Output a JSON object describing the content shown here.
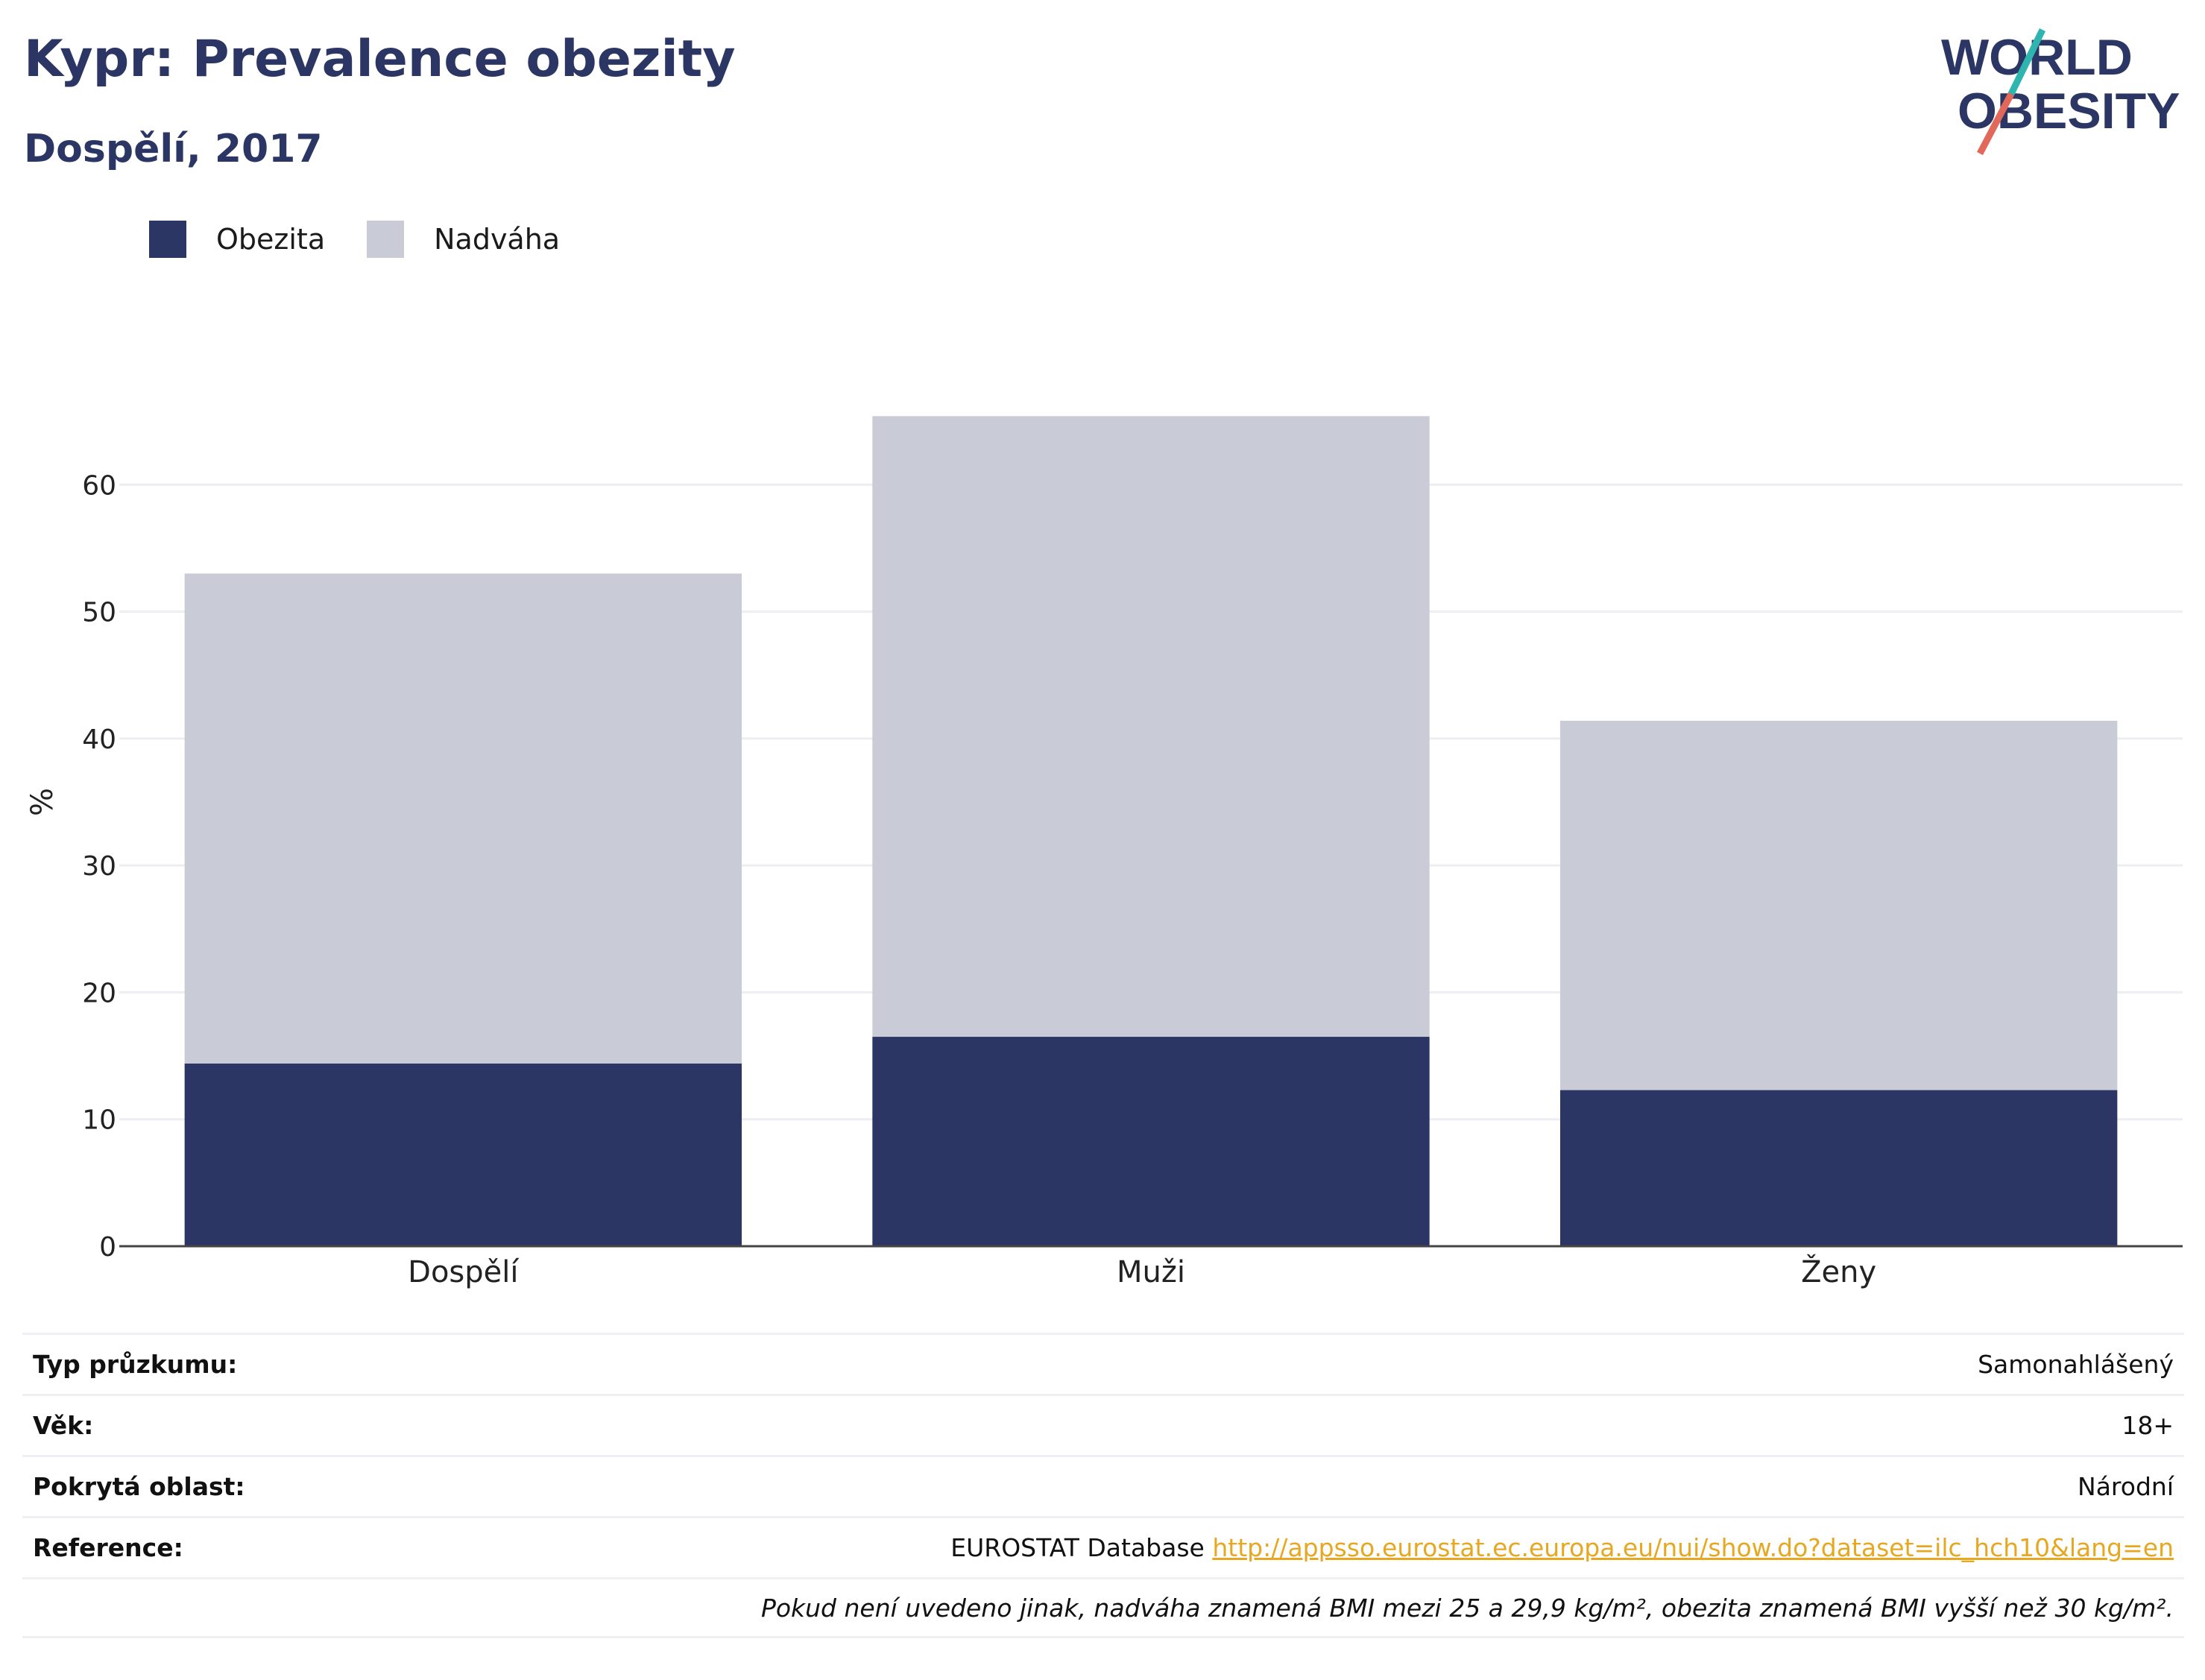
{
  "header": {
    "title": "Kypr: Prevalence obezity",
    "subtitle": "Dospělí, 2017"
  },
  "logo": {
    "line1": "WORLD",
    "line2": "OBESITY",
    "icon": "world-obesity-logo",
    "colors": {
      "text": "#2b3664",
      "slash_top": "#2fb5b0",
      "slash_bottom": "#e2685a"
    }
  },
  "legend": [
    {
      "label": "Obezita",
      "color": "#2b3664"
    },
    {
      "label": "Nadváha",
      "color": "#c9ccd7"
    }
  ],
  "chart_data": {
    "type": "bar",
    "stacked": true,
    "categories": [
      "Dospělí",
      "Muži",
      "Ženy"
    ],
    "series": [
      {
        "name": "Obezita",
        "color": "#2b3664",
        "values": [
          14.4,
          16.5,
          12.3
        ]
      },
      {
        "name": "Nadváha",
        "color": "#c9ccd7",
        "values": [
          38.6,
          48.9,
          29.1
        ]
      }
    ],
    "ylabel": "%",
    "ylim": [
      0,
      70
    ],
    "yticks": [
      0,
      10,
      20,
      30,
      40,
      50,
      60
    ],
    "grid": true,
    "legend_position": "top-left"
  },
  "info": {
    "survey_type": {
      "label": "Typ průzkumu:",
      "value": "Samonahlášený"
    },
    "age": {
      "label": "Věk:",
      "value": "18+"
    },
    "coverage": {
      "label": "Pokrytá oblast:",
      "value": "Národní"
    },
    "reference": {
      "label": "Reference:",
      "source": "EUROSTAT Database",
      "url": "http://appsso.eurostat.ec.europa.eu/nui/show.do?dataset=ilc_hch10&lang=en"
    },
    "note": "Pokud není uvedeno jinak, nadváha znamená BMI mezi 25 a 29,9 kg/m², obezita znamená BMI vyšší než 30 kg/m²."
  }
}
